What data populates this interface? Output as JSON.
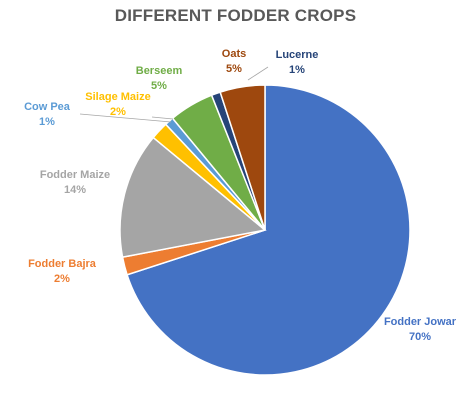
{
  "chart_data": {
    "type": "pie",
    "title": "DIFFERENT FODDER CROPS",
    "slices": [
      {
        "name": "Fodder Jowar",
        "value": 70,
        "label": "70%",
        "color": "#4472C4"
      },
      {
        "name": "Fodder Bajra",
        "value": 2,
        "label": "2%",
        "color": "#ED7D31"
      },
      {
        "name": "Fodder Maize",
        "value": 14,
        "label": "14%",
        "color": "#A5A5A5"
      },
      {
        "name": "Silage Maize",
        "value": 2,
        "label": "2%",
        "color": "#FFC000"
      },
      {
        "name": "Cow Pea",
        "value": 1,
        "label": "1%",
        "color": "#5B9BD5"
      },
      {
        "name": "Berseem",
        "value": 5,
        "label": "5%",
        "color": "#70AD47"
      },
      {
        "name": "Lucerne",
        "value": 1,
        "label": "1%",
        "color": "#264478"
      },
      {
        "name": "Oats",
        "value": 5,
        "label": "5%",
        "color": "#9E480E"
      }
    ],
    "legend": "none",
    "data_labels": "outside, category name and percent"
  }
}
